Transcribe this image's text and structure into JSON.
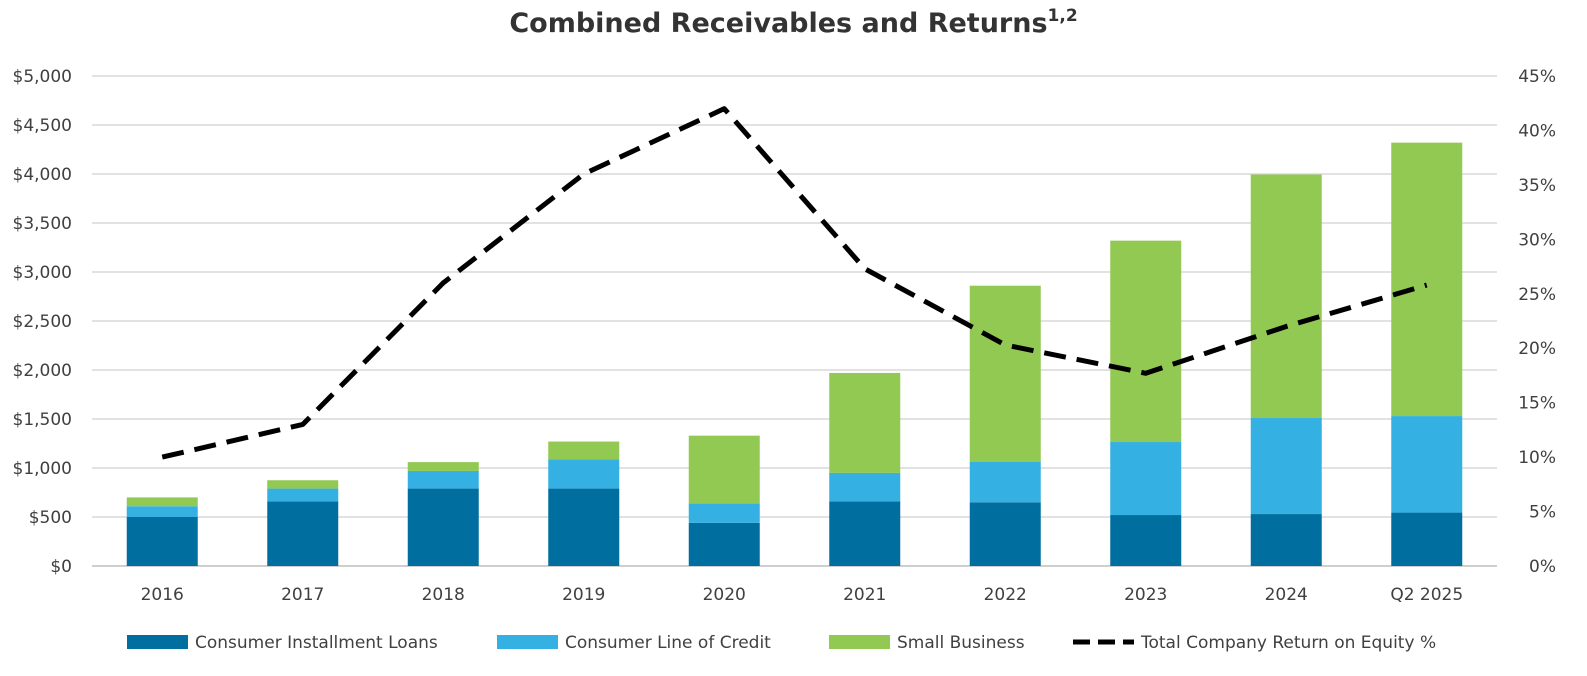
{
  "chart_data": {
    "type": "bar",
    "title": "Combined Receivables and Returns",
    "title_superscript": "1,2",
    "categories": [
      "2016",
      "2017",
      "2018",
      "2019",
      "2020",
      "2021",
      "2022",
      "2023",
      "2024",
      "Q2 2025"
    ],
    "stacked": true,
    "series": [
      {
        "name": "Consumer Installment Loans",
        "type": "bar",
        "axis": "left",
        "color": "#006e9e",
        "values": [
          500,
          660,
          790,
          790,
          440,
          660,
          650,
          520,
          530,
          545
        ]
      },
      {
        "name": "Consumer Line of Credit",
        "type": "bar",
        "axis": "left",
        "color": "#35b0e2",
        "values": [
          110,
          130,
          180,
          300,
          200,
          290,
          415,
          745,
          980,
          985
        ]
      },
      {
        "name": "Small Business",
        "type": "bar",
        "axis": "left",
        "color": "#92c953",
        "values": [
          90,
          85,
          90,
          180,
          690,
          1020,
          1795,
          2055,
          2485,
          2790
        ]
      },
      {
        "name": "Total Company Return on Equity %",
        "type": "line",
        "axis": "right",
        "color": "#000000",
        "dash": "dashed",
        "values": [
          10,
          13,
          26,
          36,
          42,
          27.3,
          20.3,
          17.7,
          22,
          25.8
        ]
      }
    ],
    "left_axis": {
      "ylim": [
        0,
        5000
      ],
      "step": 500,
      "tick_labels": [
        "$0",
        "$500",
        "$1,000",
        "$1,500",
        "$2,000",
        "$2,500",
        "$3,000",
        "$3,500",
        "$4,000",
        "$4,500",
        "$5,000"
      ]
    },
    "right_axis": {
      "ylim": [
        0,
        45
      ],
      "step": 5,
      "tick_labels": [
        "0%",
        "5%",
        "10%",
        "15%",
        "20%",
        "25%",
        "30%",
        "35%",
        "40%",
        "45%"
      ]
    },
    "grid": true,
    "legend_position": "bottom"
  }
}
